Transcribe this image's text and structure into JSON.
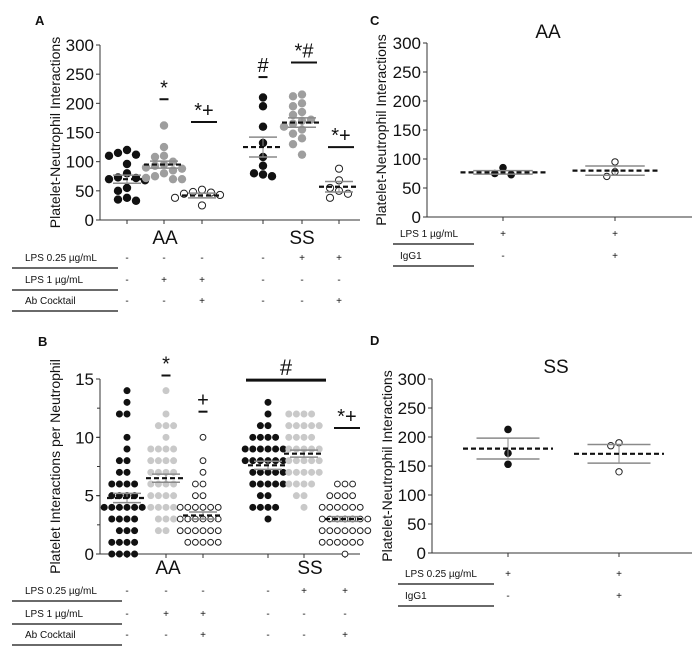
{
  "colors": {
    "filled": "#111111",
    "gray_A": "#9e9e9e",
    "gray_B": "#c9c9c9",
    "open": "#ffffff",
    "sem": "#8a8a8a"
  },
  "chart_data": [
    {
      "panel": "A",
      "type": "scatter",
      "ylabel": "Platelet-Neutrophil Interactions",
      "ylim": [
        0,
        300
      ],
      "yticks": [
        "0",
        "50",
        "100",
        "150",
        "200",
        "250",
        "300"
      ],
      "group_labels": [
        "AA",
        "SS"
      ],
      "conditions": [
        {
          "label": "LPS 0.25 µg/mL",
          "values": [
            "-",
            "-",
            "-",
            "-",
            "+",
            "+"
          ]
        },
        {
          "label": "LPS 1 µg/mL",
          "values": [
            "-",
            "+",
            "+",
            "-",
            "-",
            "-"
          ]
        },
        {
          "label": "Ab Cocktail",
          "values": [
            "-",
            "-",
            "+",
            "-",
            "-",
            "+"
          ]
        }
      ],
      "groups": [
        {
          "style": "filled",
          "mean": 70,
          "sem": 7,
          "points": [
            120,
            115,
            112,
            110,
            96,
            80,
            73,
            72,
            70,
            68,
            55,
            50,
            38,
            35,
            33
          ],
          "sig": "",
          "sig_y": null
        },
        {
          "style": "gray",
          "mean": 95,
          "sem": 6,
          "points": [
            162,
            125,
            110,
            108,
            100,
            95,
            93,
            90,
            88,
            85,
            80,
            75,
            72,
            70,
            70
          ],
          "sig": "*",
          "sig_y": 207
        },
        {
          "style": "open",
          "mean": 42,
          "sem": 4,
          "points": [
            52,
            48,
            47,
            45,
            43,
            38,
            25
          ],
          "sig": "*+",
          "sig_y": 168
        },
        {
          "style": "filled",
          "mean": 125,
          "sem": 17,
          "points": [
            210,
            195,
            160,
            132,
            108,
            93,
            80,
            78,
            75
          ],
          "sig": "#",
          "sig_y": 245
        },
        {
          "style": "gray",
          "mean": 167,
          "sem": 8,
          "points": [
            215,
            212,
            200,
            195,
            185,
            180,
            172,
            170,
            165,
            160,
            155,
            148,
            140,
            130,
            112
          ],
          "sig": "*#",
          "sig_y": 270
        },
        {
          "style": "open",
          "mean": 57,
          "sem": 9,
          "points": [
            88,
            68,
            55,
            50,
            45,
            38
          ],
          "sig": "*+",
          "sig_y": 125
        }
      ]
    },
    {
      "panel": "B",
      "type": "scatter",
      "ylabel": "Platelet Interactions per Neutrophil",
      "ylim": [
        0,
        15
      ],
      "yticks": [
        "0",
        "5",
        "10",
        "15"
      ],
      "group_labels": [
        "AA",
        "SS"
      ],
      "conditions": [
        {
          "label": "LPS 0.25 µg/mL",
          "values": [
            "-",
            "-",
            "-",
            "-",
            "+",
            "+"
          ]
        },
        {
          "label": "LPS 1 µg/mL",
          "values": [
            "-",
            "+",
            "+",
            "-",
            "-",
            "-"
          ]
        },
        {
          "label": "Ab Cocktail",
          "values": [
            "-",
            "-",
            "+",
            "-",
            "-",
            "+"
          ]
        }
      ],
      "groups": [
        {
          "style": "filled",
          "mean": 4.8,
          "sem": 0.4,
          "counts": {
            "14": 1,
            "13": 1,
            "12": 2,
            "10": 1,
            "9": 1,
            "8": 2,
            "7": 2,
            "6": 4,
            "5": 4,
            "4": 6,
            "3": 4,
            "2": 3,
            "1": 4,
            "0": 4
          },
          "sig": "",
          "sig_y": null
        },
        {
          "style": "gray",
          "mean": 6.5,
          "sem": 0.35,
          "counts": {
            "14": 1,
            "12": 1,
            "11": 3,
            "10": 1,
            "9": 4,
            "8": 4,
            "7": 4,
            "6": 4,
            "5": 4,
            "4": 4,
            "3": 3,
            "2": 2
          },
          "sig": "*",
          "sig_y": 15.3
        },
        {
          "style": "open",
          "mean": 3.3,
          "sem": 0.3,
          "counts": {
            "10": 1,
            "8": 1,
            "7": 1,
            "6": 2,
            "5": 2,
            "4": 6,
            "3": 6,
            "2": 6,
            "1": 5
          },
          "sig": "+",
          "sig_y": 12.2
        },
        {
          "style": "filled",
          "mean": 7.6,
          "sem": 0.35,
          "counts": {
            "13": 1,
            "12": 1,
            "11": 2,
            "10": 4,
            "9": 6,
            "8": 6,
            "7": 5,
            "6": 5,
            "5": 2,
            "4": 4,
            "3": 1
          },
          "sig": "",
          "sig_y": null
        },
        {
          "style": "gray",
          "mean": 8.6,
          "sem": 0.3,
          "counts": {
            "12": 4,
            "11": 5,
            "10": 4,
            "9": 5,
            "8": 5,
            "7": 5,
            "6": 4,
            "5": 2,
            "4": 1
          },
          "sig": "",
          "sig_y": null
        },
        {
          "style": "open",
          "mean": 3.0,
          "sem": 0.2,
          "counts": {
            "6": 3,
            "5": 4,
            "4": 6,
            "3": 7,
            "2": 7,
            "1": 6,
            "0": 1
          },
          "sig": "*+",
          "sig_y": 10.8
        }
      ],
      "span_sig": {
        "label": "#",
        "from_group": 3,
        "to_group": 4,
        "y": 14.9
      }
    },
    {
      "panel": "C",
      "type": "scatter",
      "title": "AA",
      "ylabel": "Platelet-Neutrophil Interactions",
      "ylim": [
        0,
        300
      ],
      "yticks": [
        "0",
        "50",
        "100",
        "150",
        "200",
        "250",
        "300"
      ],
      "conditions": [
        {
          "label": "LPS 1 µg/mL",
          "values": [
            "+",
            "+"
          ]
        },
        {
          "label": "IgG1",
          "values": [
            "-",
            "+"
          ]
        }
      ],
      "groups": [
        {
          "style": "filled",
          "mean": 77,
          "sem": 3,
          "points": [
            85,
            75,
            73
          ]
        },
        {
          "style": "open",
          "mean": 80,
          "sem": 8,
          "points": [
            95,
            78,
            70
          ]
        }
      ]
    },
    {
      "panel": "D",
      "type": "scatter",
      "title": "SS",
      "ylabel": "Platelet-Neutrophil Interactions",
      "ylim": [
        0,
        300
      ],
      "yticks": [
        "0",
        "50",
        "100",
        "150",
        "200",
        "250",
        "300"
      ],
      "conditions": [
        {
          "label": "LPS 0.25 µg/mL",
          "values": [
            "+",
            "+"
          ]
        },
        {
          "label": "IgG1",
          "values": [
            "-",
            "+"
          ]
        }
      ],
      "groups": [
        {
          "style": "filled",
          "mean": 180,
          "sem": 18,
          "points": [
            213,
            172,
            153
          ]
        },
        {
          "style": "open",
          "mean": 171,
          "sem": 16,
          "points": [
            190,
            185,
            140
          ]
        }
      ]
    }
  ]
}
